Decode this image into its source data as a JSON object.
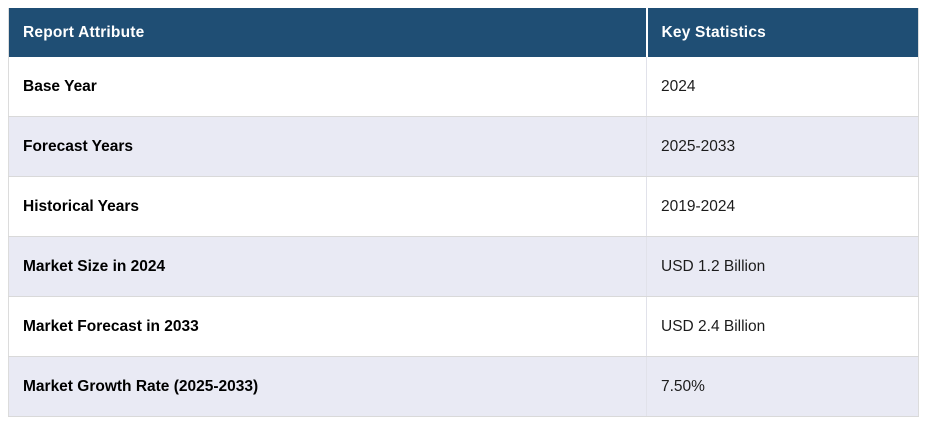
{
  "chart_data": {
    "type": "table",
    "columns": [
      {
        "label": "Report Attribute"
      },
      {
        "label": "Key Statistics"
      }
    ],
    "rows": [
      {
        "attribute": "Base Year",
        "value": "2024"
      },
      {
        "attribute": "Forecast Years",
        "value": "2025-2033"
      },
      {
        "attribute": "Historical Years",
        "value": "2019-2024"
      },
      {
        "attribute": "Market Size in 2024",
        "value": "USD 1.2 Billion"
      },
      {
        "attribute": "Market Forecast in 2033",
        "value": "USD 2.4 Billion"
      },
      {
        "attribute": "Market Growth Rate (2025-2033)",
        "value": "7.50%"
      }
    ]
  },
  "colors": {
    "header_bg": "#1f4e74",
    "header_text": "#ffffff",
    "row_bg": "#ffffff",
    "alt_row_bg": "#e9eaf4",
    "border": "#d9d9d9",
    "attribute_text": "#000000",
    "value_text": "#1c1c1c"
  }
}
